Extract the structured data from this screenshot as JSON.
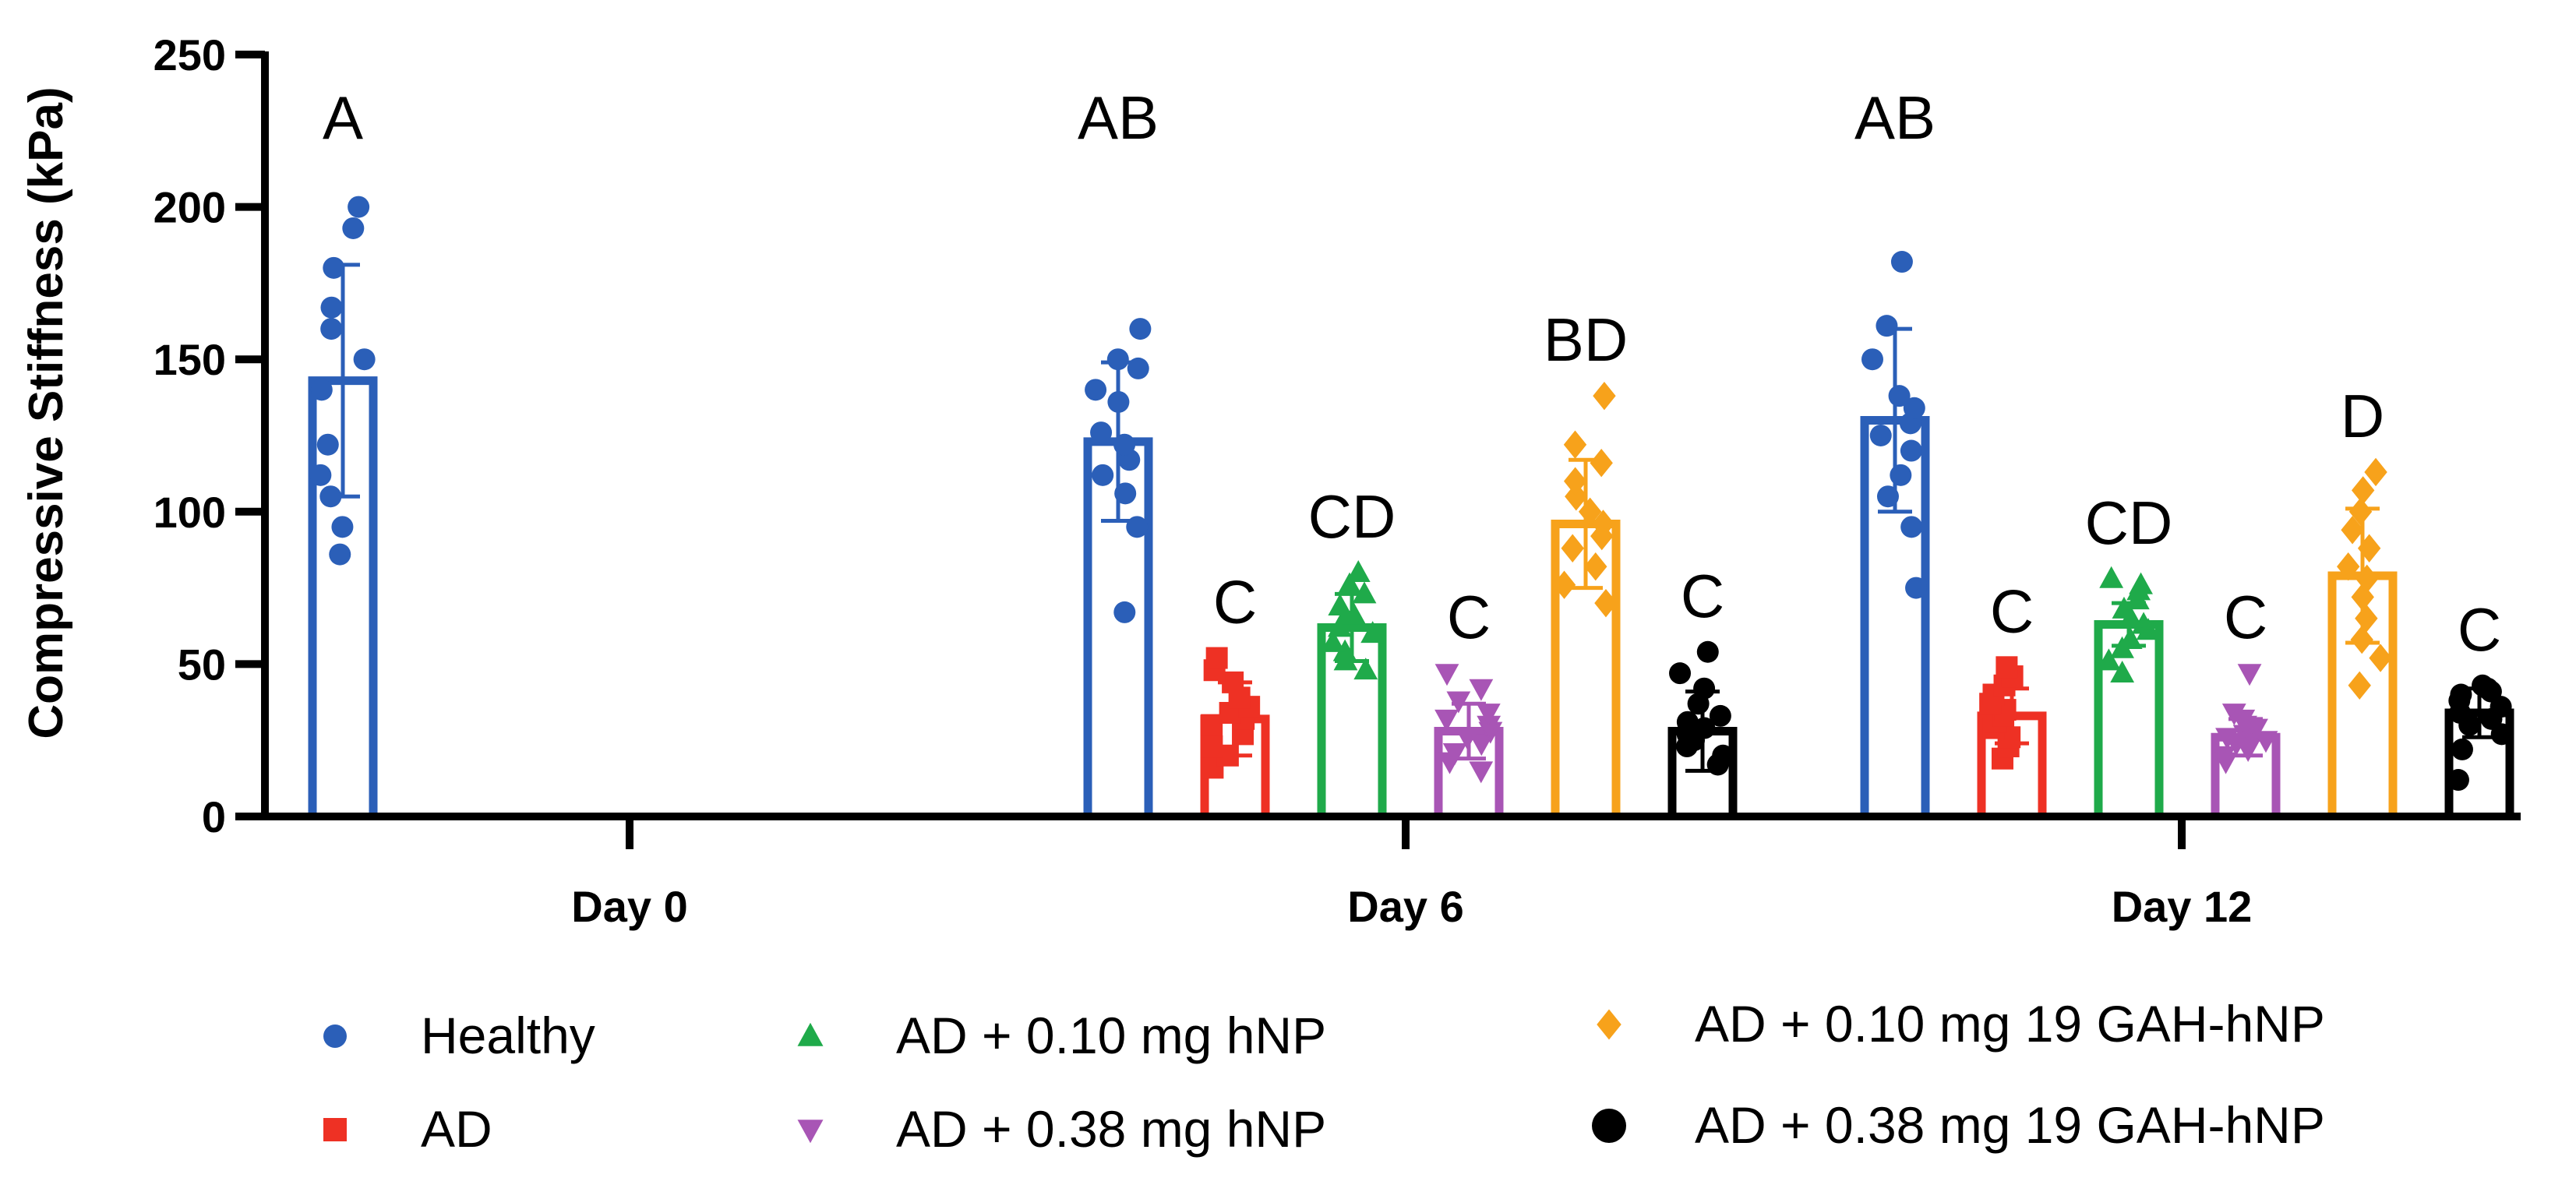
{
  "chart_data": {
    "type": "bar",
    "ylabel": "Compressive Stiffness (kPa)",
    "xlabel": "",
    "ylim": [
      0,
      250
    ],
    "yticks": [
      0,
      50,
      100,
      150,
      200,
      250
    ],
    "categories": [
      "Day 0",
      "Day 6",
      "Day 12"
    ],
    "legend_position": "bottom",
    "series": [
      {
        "name": "Healthy",
        "color": "#2b5fb8",
        "marker": "circle",
        "values": [
          143,
          123,
          130
        ],
        "errors": [
          38,
          26,
          30
        ],
        "significance": [
          "A",
          "AB",
          "AB"
        ],
        "points": [
          [
            86,
            95,
            105,
            112,
            122,
            140,
            150,
            160,
            167,
            180,
            193,
            200
          ],
          [
            67,
            95,
            106,
            112,
            117,
            122,
            126,
            136,
            140,
            147,
            150,
            160
          ],
          [
            75,
            95,
            105,
            112,
            120,
            125,
            129,
            134,
            138,
            150,
            161,
            182
          ]
        ]
      },
      {
        "name": "AD",
        "color": "#ee3124",
        "marker": "square",
        "values": [
          null,
          32,
          33
        ],
        "errors": [
          null,
          12,
          9
        ],
        "significance": [
          null,
          "C",
          "C"
        ],
        "points": [
          [],
          [
            16,
            20,
            23,
            27,
            30,
            32,
            34,
            36,
            39,
            44,
            48,
            52
          ],
          [
            19,
            23,
            26,
            29,
            31,
            33,
            35,
            37,
            40,
            43,
            46,
            49
          ]
        ]
      },
      {
        "name": "AD + 0.10 mg hNP",
        "color": "#1faa4a",
        "marker": "triangle-up",
        "values": [
          null,
          62,
          63
        ],
        "errors": [
          null,
          11,
          7
        ],
        "significance": [
          null,
          "CD",
          "CD"
        ],
        "points": [
          [],
          [
            48,
            51,
            54,
            57,
            60,
            62,
            64,
            66,
            69,
            73,
            76,
            80
          ],
          [
            47,
            51,
            55,
            58,
            61,
            63,
            65,
            68,
            71,
            74,
            76,
            78
          ]
        ]
      },
      {
        "name": "AD + 0.38 mg hNP",
        "color": "#a855b5",
        "marker": "triangle-down",
        "values": [
          null,
          28,
          26
        ],
        "errors": [
          null,
          9,
          6
        ],
        "significance": [
          null,
          "C",
          "C"
        ],
        "points": [
          [],
          [
            15,
            18,
            21,
            24,
            26,
            28,
            30,
            32,
            34,
            38,
            42,
            47
          ],
          [
            18,
            20,
            22,
            24,
            25,
            26,
            27,
            29,
            30,
            32,
            34,
            47
          ]
        ]
      },
      {
        "name": "AD + 0.10 mg 19 GAH-hNP",
        "color": "#f7a21b",
        "marker": "diamond",
        "values": [
          null,
          96,
          79
        ],
        "errors": [
          null,
          21,
          22
        ],
        "significance": [
          null,
          "BD",
          "D"
        ],
        "points": [
          [],
          [
            70,
            76,
            82,
            88,
            92,
            96,
            100,
            105,
            110,
            116,
            122,
            138
          ],
          [
            43,
            52,
            58,
            65,
            72,
            78,
            82,
            88,
            94,
            100,
            107,
            113
          ]
        ]
      },
      {
        "name": "AD + 0.38 mg 19 GAH-hNP",
        "color": "#000000",
        "marker": "circle",
        "values": [
          null,
          28,
          34
        ],
        "errors": [
          null,
          13,
          8
        ],
        "significance": [
          null,
          "C",
          "C"
        ],
        "points": [
          [],
          [
            17,
            20,
            23,
            25,
            27,
            29,
            31,
            33,
            37,
            42,
            47,
            54
          ],
          [
            12,
            22,
            27,
            30,
            32,
            34,
            36,
            38,
            40,
            41,
            42,
            43
          ]
        ]
      }
    ]
  }
}
